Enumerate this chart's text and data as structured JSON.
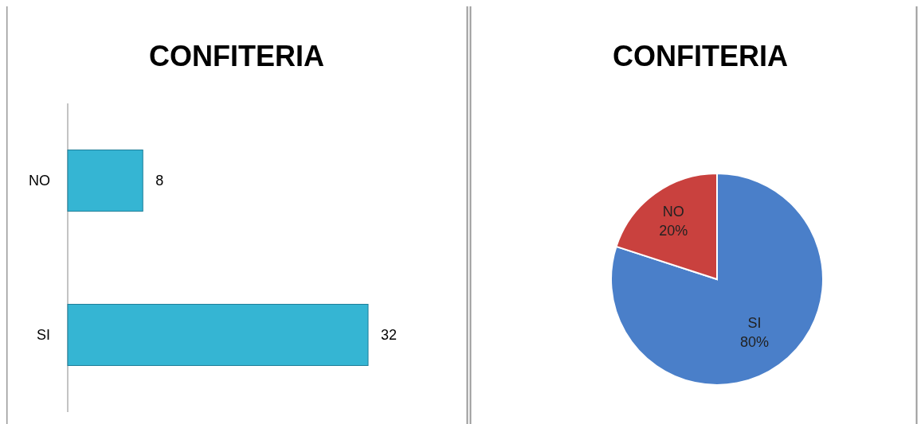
{
  "chart_data": [
    {
      "type": "bar",
      "title": "CONFITERIA",
      "orientation": "horizontal",
      "categories": [
        "NO",
        "SI"
      ],
      "values": [
        8,
        32
      ],
      "color": "#35b5d3",
      "data_labels": true
    },
    {
      "type": "pie",
      "title": "CONFITERIA",
      "categories": [
        "SI",
        "NO"
      ],
      "values": [
        80,
        20
      ],
      "colors": [
        "#4a7fc9",
        "#c9413e"
      ],
      "value_labels": [
        "80%",
        "20%"
      ],
      "data_labels": true
    }
  ]
}
